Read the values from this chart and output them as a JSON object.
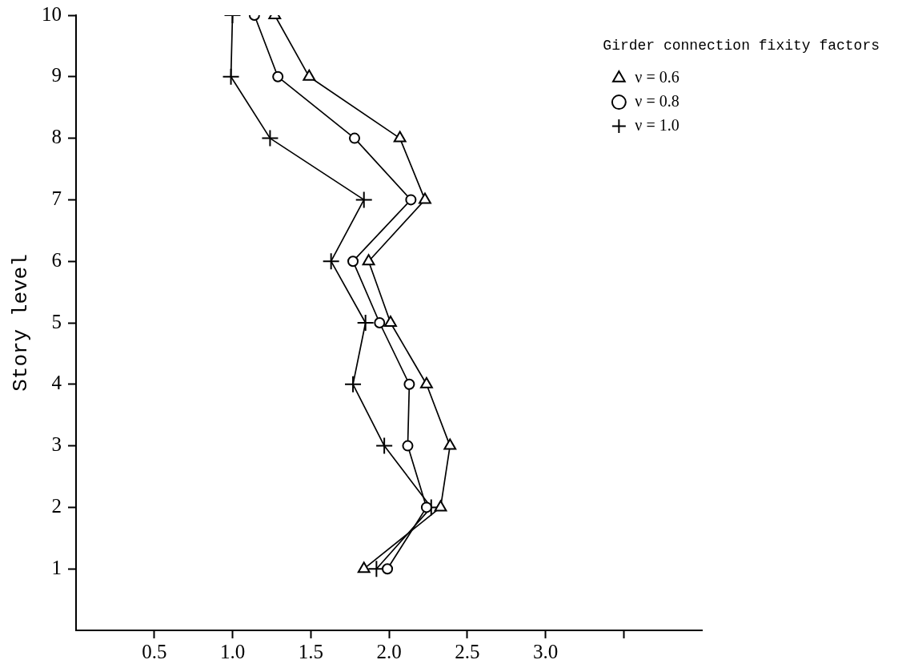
{
  "chart_data": {
    "type": "line",
    "ylabel": "Story level",
    "legend_title": "Girder connection fixity factors",
    "legend": "top right",
    "xlim": [
      0,
      4
    ],
    "xticks": [
      0.5,
      {
        "value": 1,
        "label": "1.0"
      },
      1.5,
      {
        "value": 2,
        "label": "2.0"
      },
      2.5,
      {
        "value": 3,
        "label": "3.0"
      },
      {
        "value": 3.5,
        "label": null
      }
    ],
    "ylim": [
      0,
      10
    ],
    "yticks": [
      1,
      2,
      3,
      4,
      5,
      6,
      7,
      8,
      9,
      10
    ],
    "series": [
      {
        "name": "ν = 0.6",
        "color": "#000000",
        "marker": "triangle",
        "x": [
          1.84,
          2.33,
          2.39,
          2.24,
          2.01,
          1.87,
          2.23,
          2.07,
          1.49,
          1.27
        ],
        "values": [
          1,
          2,
          3,
          4,
          5,
          6,
          7,
          8,
          9,
          10
        ]
      },
      {
        "name": "ν = 0.8",
        "color": "#000000",
        "marker": "circle",
        "x": [
          1.99,
          2.24,
          2.12,
          2.13,
          1.94,
          1.77,
          2.14,
          1.78,
          1.29,
          1.14
        ],
        "values": [
          1,
          2,
          3,
          4,
          5,
          6,
          7,
          8,
          9,
          10
        ]
      },
      {
        "name": "ν = 1.0",
        "color": "#000000",
        "marker": "cross",
        "x": [
          1.92,
          2.27,
          1.97,
          1.77,
          1.85,
          1.63,
          1.84,
          1.24,
          0.99,
          1.0
        ],
        "values": [
          1,
          2,
          3,
          4,
          5,
          6,
          7,
          8,
          9,
          10
        ]
      }
    ]
  }
}
